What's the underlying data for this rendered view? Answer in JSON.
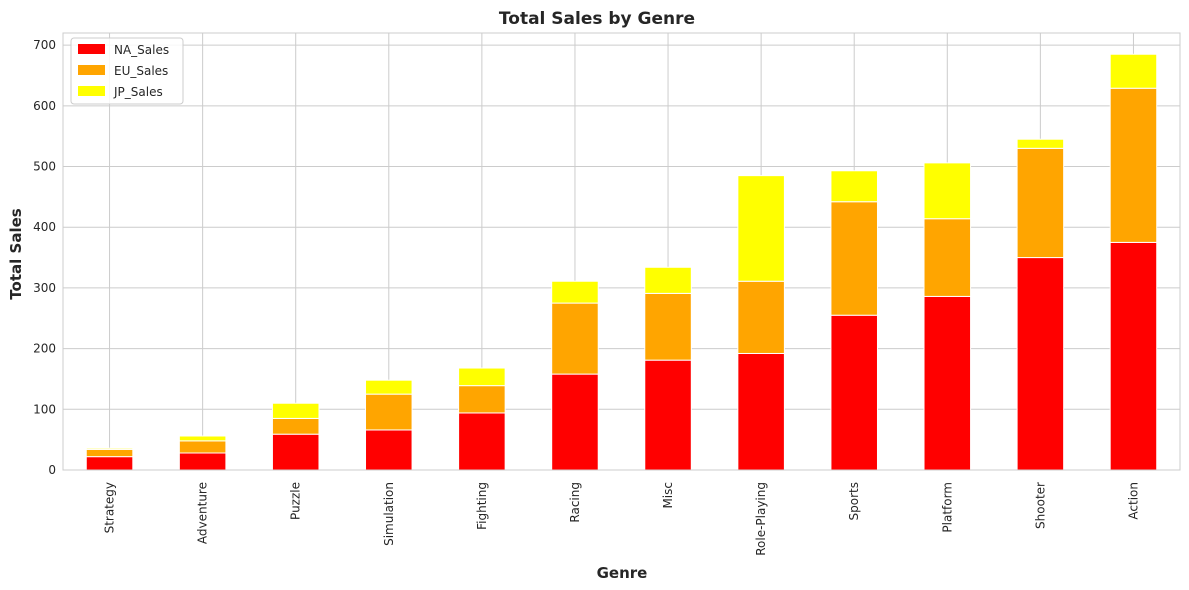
{
  "chart_data": {
    "type": "bar",
    "stacked": true,
    "title": "Total Sales by Genre",
    "xlabel": "Genre",
    "ylabel": "Total Sales",
    "ylim": [
      0,
      720
    ],
    "yticks": [
      0,
      100,
      200,
      300,
      400,
      500,
      600,
      700
    ],
    "grid": true,
    "legend_position": "top-left",
    "categories": [
      "Strategy",
      "Adventure",
      "Puzzle",
      "Simulation",
      "Fighting",
      "Racing",
      "Misc",
      "Role-Playing",
      "Sports",
      "Platform",
      "Shooter",
      "Action"
    ],
    "series": [
      {
        "name": "NA_Sales",
        "color": "#ff0000",
        "values": [
          22,
          28,
          59,
          66,
          94,
          158,
          181,
          192,
          255,
          286,
          350,
          375
        ]
      },
      {
        "name": "EU_Sales",
        "color": "#ffa500",
        "values": [
          12,
          20,
          26,
          59,
          45,
          117,
          110,
          119,
          187,
          128,
          180,
          254
        ]
      },
      {
        "name": "JP_Sales",
        "color": "#ffff00",
        "values": [
          2,
          8,
          25,
          23,
          29,
          36,
          43,
          174,
          51,
          92,
          15,
          56
        ]
      }
    ]
  }
}
